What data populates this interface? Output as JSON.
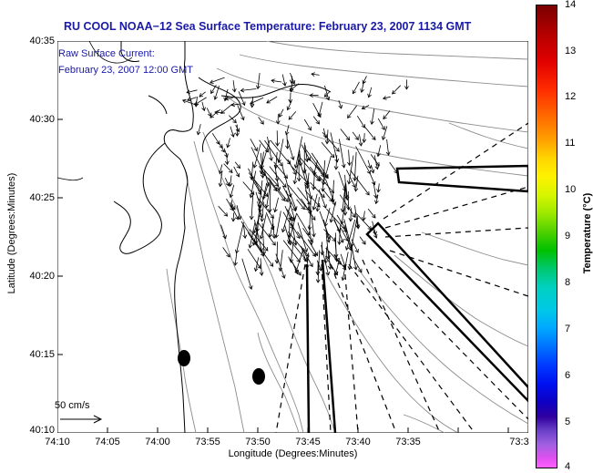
{
  "title": "RU COOL  NOAA−12  Sea Surface Temperature:  February 23, 2007 1134 GMT",
  "overlay": {
    "line1": "Raw Surface Current:",
    "line2": "February 23, 2007 12:00 GMT"
  },
  "axes": {
    "ylabel": "Latitude (Degrees:Minutes)",
    "xlabel": "Longitude (Degrees:Minutes)",
    "yticks": [
      "40:35",
      "40:30",
      "40:25",
      "40:20",
      "40:15",
      "40:10"
    ],
    "xticks": [
      "74:10",
      "74:05",
      "74:00",
      "73:55",
      "73:50",
      "73:45",
      "73:40",
      "73:35",
      "73:3"
    ]
  },
  "colorbar": {
    "label": "Temperature (°C)",
    "ticks": [
      "14",
      "13",
      "12",
      "11",
      "10",
      "9",
      "8",
      "7",
      "6",
      "5",
      "4"
    ],
    "min": 4,
    "max": 14
  },
  "scale": {
    "label": "50 cm/s"
  },
  "colors": {
    "title": "#1a1aa6",
    "coast": "#000000",
    "bathymetry": "#999999",
    "land_fill": "#ffffff"
  }
}
